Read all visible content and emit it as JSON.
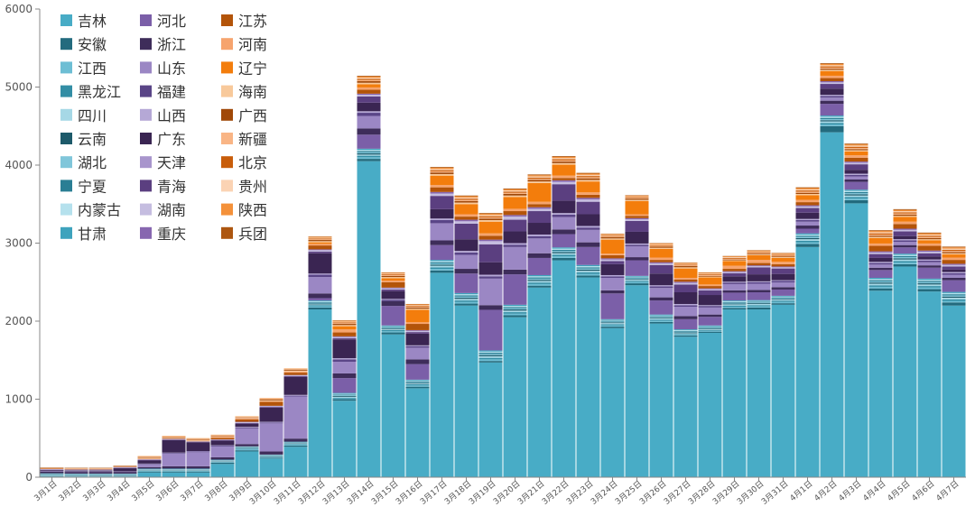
{
  "chart_data": {
    "type": "bar",
    "stacked": true,
    "title": "",
    "xlabel": "",
    "ylabel": "",
    "ylim": [
      0,
      6000
    ],
    "yticks": [
      0,
      1000,
      2000,
      3000,
      4000,
      5000,
      6000
    ],
    "grid": false,
    "legend_position": "top-left",
    "categories": [
      "3月1日",
      "3月2日",
      "3月3日",
      "3月4日",
      "3月5日",
      "3月6日",
      "3月7日",
      "3月8日",
      "3月9日",
      "3月10日",
      "3月11日",
      "3月12日",
      "3月13日",
      "3月14日",
      "3月15日",
      "3月16日",
      "3月17日",
      "3月18日",
      "3月19日",
      "3月20日",
      "3月21日",
      "3月22日",
      "3月23日",
      "3月24日",
      "3月25日",
      "3月26日",
      "3月27日",
      "3月28日",
      "3月29日",
      "3月30日",
      "3月31日",
      "4月1日",
      "4月2日",
      "4月3日",
      "4月4日",
      "4月5日",
      "4月6日",
      "4月7日"
    ],
    "series": [
      {
        "name": "吉林",
        "color": "#48acc6",
        "values": [
          0,
          0,
          0,
          0,
          60,
          60,
          60,
          170,
          330,
          240,
          390,
          2150,
          980,
          4050,
          1830,
          1140,
          2620,
          2200,
          1470,
          2050,
          2430,
          2780,
          2560,
          1910,
          2460,
          1970,
          1800,
          1850,
          2150,
          2150,
          2210,
          2950,
          4420,
          3510,
          2390,
          2700,
          2380,
          2200
        ]
      },
      {
        "name": "安徽",
        "color": "#236b7e",
        "values": [
          10,
          5,
          5,
          5,
          10,
          10,
          10,
          15,
          15,
          10,
          15,
          25,
          20,
          30,
          25,
          20,
          30,
          25,
          20,
          25,
          25,
          30,
          25,
          20,
          25,
          20,
          15,
          15,
          20,
          25,
          20,
          40,
          80,
          40,
          30,
          30,
          30,
          40
        ]
      },
      {
        "name": "江西",
        "color": "#6dbed4",
        "values": [
          5,
          5,
          5,
          5,
          5,
          5,
          5,
          5,
          10,
          5,
          10,
          15,
          10,
          20,
          15,
          15,
          20,
          20,
          20,
          20,
          20,
          20,
          20,
          15,
          15,
          15,
          10,
          10,
          15,
          15,
          15,
          20,
          20,
          20,
          20,
          20,
          20,
          20
        ]
      },
      {
        "name": "黑龙江",
        "color": "#338ea5",
        "values": [
          5,
          5,
          5,
          5,
          5,
          5,
          5,
          5,
          10,
          5,
          10,
          15,
          10,
          20,
          15,
          15,
          20,
          20,
          20,
          20,
          20,
          20,
          20,
          15,
          15,
          15,
          10,
          10,
          15,
          15,
          15,
          20,
          20,
          20,
          20,
          20,
          20,
          20
        ]
      },
      {
        "name": "四川",
        "color": "#a6d8e6",
        "values": [
          5,
          5,
          5,
          5,
          5,
          5,
          5,
          5,
          5,
          5,
          5,
          10,
          10,
          15,
          10,
          10,
          20,
          20,
          20,
          20,
          20,
          20,
          20,
          15,
          15,
          15,
          10,
          10,
          15,
          15,
          15,
          20,
          20,
          20,
          20,
          20,
          20,
          20
        ]
      },
      {
        "name": "云南",
        "color": "#1d5a6a",
        "values": [
          5,
          5,
          5,
          5,
          5,
          5,
          5,
          5,
          5,
          5,
          5,
          10,
          10,
          15,
          10,
          10,
          15,
          15,
          15,
          15,
          15,
          15,
          15,
          10,
          10,
          10,
          10,
          10,
          10,
          10,
          10,
          15,
          15,
          15,
          15,
          15,
          15,
          15
        ]
      },
      {
        "name": "湖北",
        "color": "#80c6da",
        "values": [
          5,
          5,
          5,
          5,
          5,
          5,
          5,
          5,
          5,
          5,
          5,
          10,
          10,
          15,
          10,
          10,
          15,
          15,
          15,
          15,
          15,
          15,
          15,
          10,
          10,
          10,
          10,
          10,
          10,
          10,
          10,
          15,
          15,
          15,
          15,
          15,
          15,
          15
        ]
      },
      {
        "name": "宁夏",
        "color": "#2a7e94",
        "values": [
          5,
          5,
          5,
          5,
          5,
          5,
          5,
          5,
          5,
          5,
          5,
          10,
          10,
          15,
          10,
          10,
          15,
          15,
          15,
          15,
          15,
          15,
          15,
          10,
          10,
          10,
          10,
          10,
          10,
          10,
          10,
          15,
          15,
          15,
          15,
          15,
          15,
          15
        ]
      },
      {
        "name": "内蒙古",
        "color": "#b5e1ed",
        "values": [
          5,
          5,
          5,
          5,
          5,
          5,
          5,
          5,
          5,
          5,
          5,
          10,
          10,
          15,
          10,
          10,
          15,
          15,
          15,
          15,
          15,
          15,
          15,
          10,
          10,
          10,
          10,
          10,
          10,
          10,
          10,
          15,
          15,
          15,
          15,
          15,
          15,
          15
        ]
      },
      {
        "name": "甘肃",
        "color": "#3ea3bd",
        "values": [
          5,
          5,
          5,
          5,
          5,
          5,
          5,
          5,
          5,
          5,
          5,
          10,
          10,
          15,
          10,
          10,
          15,
          15,
          15,
          15,
          15,
          15,
          15,
          10,
          10,
          10,
          10,
          10,
          10,
          10,
          10,
          15,
          15,
          15,
          15,
          15,
          15,
          15
        ]
      },
      {
        "name": "河北",
        "color": "#7b5fa8",
        "values": [
          0,
          0,
          0,
          0,
          0,
          0,
          0,
          0,
          0,
          0,
          0,
          30,
          190,
          180,
          250,
          200,
          190,
          250,
          520,
          390,
          220,
          170,
          230,
          330,
          200,
          180,
          130,
          110,
          100,
          100,
          80,
          60,
          150,
          100,
          100,
          80,
          140,
          150
        ]
      },
      {
        "name": "浙江",
        "color": "#3e2d5a",
        "values": [
          20,
          20,
          20,
          20,
          20,
          30,
          30,
          30,
          30,
          40,
          40,
          60,
          60,
          80,
          60,
          60,
          60,
          60,
          60,
          60,
          60,
          60,
          60,
          40,
          40,
          40,
          40,
          30,
          30,
          30,
          30,
          40,
          40,
          30,
          30,
          30,
          30,
          30
        ]
      },
      {
        "name": "山东",
        "color": "#9b87c4",
        "values": [
          0,
          0,
          0,
          0,
          30,
          160,
          180,
          140,
          200,
          360,
          540,
          210,
          150,
          160,
          0,
          150,
          220,
          180,
          340,
          290,
          190,
          160,
          160,
          160,
          140,
          120,
          120,
          90,
          80,
          80,
          60,
          50,
          40,
          40,
          40,
          40,
          40,
          40
        ]
      },
      {
        "name": "福建",
        "color": "#5a4587",
        "values": [
          5,
          5,
          5,
          5,
          10,
          10,
          10,
          10,
          10,
          10,
          10,
          30,
          30,
          40,
          20,
          20,
          40,
          30,
          30,
          30,
          30,
          30,
          30,
          20,
          20,
          20,
          20,
          20,
          20,
          20,
          20,
          20,
          20,
          20,
          20,
          20,
          20,
          20
        ]
      },
      {
        "name": "山西",
        "color": "#b5a8d6",
        "values": [
          5,
          5,
          5,
          5,
          5,
          5,
          5,
          5,
          10,
          10,
          10,
          15,
          15,
          20,
          10,
          10,
          20,
          20,
          20,
          20,
          20,
          20,
          20,
          15,
          15,
          15,
          15,
          10,
          10,
          10,
          10,
          15,
          15,
          15,
          15,
          15,
          15,
          15
        ]
      },
      {
        "name": "广东",
        "color": "#3a2552",
        "values": [
          10,
          10,
          10,
          40,
          40,
          160,
          110,
          60,
          40,
          180,
          230,
          260,
          240,
          110,
          100,
          150,
          120,
          150,
          160,
          150,
          150,
          160,
          150,
          140,
          150,
          150,
          150,
          130,
          70,
          90,
          80,
          80,
          80,
          50,
          50,
          40,
          40,
          30
        ]
      },
      {
        "name": "天津",
        "color": "#a895cc",
        "values": [
          0,
          0,
          0,
          0,
          0,
          0,
          0,
          0,
          0,
          0,
          0,
          0,
          0,
          0,
          0,
          0,
          0,
          0,
          0,
          0,
          0,
          0,
          0,
          0,
          0,
          0,
          0,
          0,
          0,
          0,
          0,
          0,
          0,
          0,
          0,
          0,
          0,
          0
        ]
      },
      {
        "name": "青海",
        "color": "#5b3f80",
        "values": [
          5,
          5,
          5,
          5,
          5,
          5,
          5,
          5,
          10,
          10,
          10,
          20,
          15,
          80,
          20,
          20,
          170,
          200,
          230,
          150,
          150,
          210,
          160,
          40,
          140,
          110,
          100,
          60,
          40,
          90,
          70,
          60,
          60,
          70,
          50,
          60,
          40,
          40
        ]
      },
      {
        "name": "湖南",
        "color": "#c5bde0",
        "values": [
          5,
          5,
          5,
          5,
          5,
          5,
          5,
          5,
          10,
          10,
          10,
          20,
          15,
          20,
          15,
          15,
          30,
          30,
          40,
          40,
          30,
          30,
          30,
          20,
          20,
          20,
          20,
          15,
          15,
          15,
          15,
          20,
          20,
          20,
          20,
          20,
          20,
          20
        ]
      },
      {
        "name": "重庆",
        "color": "#8767b0",
        "values": [
          5,
          5,
          5,
          5,
          5,
          5,
          5,
          5,
          5,
          5,
          5,
          10,
          10,
          15,
          10,
          10,
          20,
          20,
          20,
          20,
          20,
          20,
          20,
          15,
          15,
          15,
          15,
          10,
          10,
          10,
          10,
          15,
          15,
          15,
          15,
          15,
          15,
          15
        ]
      },
      {
        "name": "江苏",
        "color": "#b35409",
        "values": [
          5,
          5,
          5,
          5,
          5,
          5,
          5,
          20,
          30,
          50,
          30,
          50,
          50,
          50,
          70,
          80,
          60,
          40,
          50,
          50,
          40,
          30,
          40,
          40,
          30,
          30,
          30,
          30,
          30,
          30,
          30,
          40,
          40,
          50,
          70,
          60,
          60,
          50
        ]
      },
      {
        "name": "河南",
        "color": "#f6a46e",
        "values": [
          5,
          5,
          5,
          5,
          5,
          5,
          5,
          10,
          10,
          10,
          15,
          20,
          40,
          30,
          20,
          20,
          30,
          30,
          30,
          30,
          30,
          30,
          30,
          20,
          20,
          30,
          20,
          20,
          40,
          40,
          30,
          30,
          30,
          30,
          30,
          30,
          30,
          30
        ]
      },
      {
        "name": "辽宁",
        "color": "#f37d0c",
        "values": [
          0,
          0,
          0,
          0,
          0,
          0,
          0,
          0,
          0,
          0,
          0,
          20,
          40,
          40,
          30,
          160,
          120,
          130,
          150,
          150,
          240,
          140,
          140,
          180,
          170,
          110,
          120,
          90,
          60,
          60,
          50,
          60,
          60,
          50,
          70,
          60,
          40,
          40
        ]
      },
      {
        "name": "海南",
        "color": "#f8c99b",
        "values": [
          5,
          5,
          5,
          5,
          5,
          5,
          5,
          5,
          5,
          10,
          10,
          15,
          15,
          20,
          15,
          15,
          20,
          20,
          20,
          20,
          20,
          20,
          20,
          15,
          15,
          15,
          15,
          10,
          10,
          10,
          10,
          15,
          15,
          15,
          15,
          15,
          15,
          15
        ]
      },
      {
        "name": "广西",
        "color": "#a04808",
        "values": [
          5,
          5,
          5,
          5,
          5,
          5,
          5,
          5,
          5,
          10,
          10,
          15,
          15,
          20,
          15,
          15,
          20,
          20,
          20,
          20,
          20,
          20,
          20,
          15,
          15,
          15,
          15,
          10,
          10,
          10,
          10,
          15,
          15,
          15,
          15,
          15,
          15,
          15
        ]
      },
      {
        "name": "新疆",
        "color": "#f9b585",
        "values": [
          0,
          0,
          0,
          0,
          5,
          5,
          5,
          5,
          5,
          5,
          5,
          10,
          10,
          15,
          10,
          10,
          15,
          15,
          15,
          15,
          15,
          15,
          15,
          10,
          10,
          10,
          10,
          10,
          10,
          10,
          10,
          15,
          15,
          15,
          15,
          15,
          15,
          15
        ]
      },
      {
        "name": "北京",
        "color": "#c85d0a",
        "values": [
          0,
          0,
          0,
          0,
          5,
          5,
          5,
          5,
          5,
          5,
          5,
          10,
          10,
          15,
          10,
          10,
          15,
          15,
          15,
          15,
          15,
          15,
          15,
          10,
          10,
          10,
          10,
          10,
          10,
          10,
          10,
          15,
          15,
          15,
          15,
          15,
          15,
          15
        ]
      },
      {
        "name": "贵州",
        "color": "#fbd3b4",
        "values": [
          0,
          0,
          0,
          0,
          5,
          5,
          5,
          5,
          5,
          5,
          5,
          10,
          10,
          15,
          10,
          10,
          15,
          15,
          15,
          15,
          15,
          15,
          15,
          10,
          10,
          10,
          10,
          10,
          10,
          10,
          10,
          15,
          15,
          15,
          15,
          15,
          15,
          15
        ]
      },
      {
        "name": "陕西",
        "color": "#f4913a",
        "values": [
          0,
          0,
          0,
          0,
          5,
          5,
          5,
          5,
          5,
          5,
          5,
          10,
          10,
          15,
          10,
          10,
          15,
          15,
          15,
          15,
          15,
          15,
          15,
          10,
          10,
          10,
          10,
          10,
          10,
          10,
          10,
          15,
          15,
          15,
          15,
          15,
          15,
          15
        ]
      },
      {
        "name": "兵团",
        "color": "#ad5610",
        "values": [
          0,
          0,
          0,
          0,
          0,
          0,
          0,
          0,
          0,
          0,
          0,
          5,
          5,
          10,
          5,
          5,
          10,
          10,
          10,
          10,
          10,
          10,
          10,
          5,
          5,
          5,
          5,
          5,
          5,
          5,
          5,
          10,
          10,
          10,
          10,
          10,
          10,
          10
        ]
      }
    ]
  }
}
